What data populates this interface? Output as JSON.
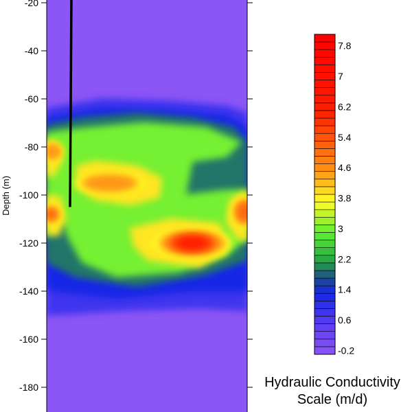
{
  "chart_data": {
    "type": "heatmap",
    "ylabel": "Depth (m)",
    "ylim": [
      -192,
      -18
    ],
    "y_ticks": [
      -20,
      -40,
      -60,
      -80,
      -100,
      -120,
      -140,
      -160,
      -180
    ],
    "y_tick_labels": [
      "-20",
      "-40",
      "-60",
      "-80",
      "-100",
      "-120",
      "-140",
      "-160",
      "-180"
    ],
    "background_value": -0.2,
    "colorbar": {
      "title_line1": "Hydraulic Conductivity",
      "title_line2": "Scale (m/d)",
      "min": -0.2,
      "max": 8.2,
      "step": 0.2,
      "labels": [
        "7.8",
        "7",
        "6.2",
        "5.4",
        "4.6",
        "3.8",
        "3",
        "2.2",
        "1.4",
        "0.6",
        "-0.2"
      ],
      "stops": [
        {
          "value": -0.2,
          "color": "#8c55f5"
        },
        {
          "value": 0.6,
          "color": "#5a3cf5"
        },
        {
          "value": 1.4,
          "color": "#1428e6"
        },
        {
          "value": 1.8,
          "color": "#1e4a8c"
        },
        {
          "value": 2.2,
          "color": "#23a046"
        },
        {
          "value": 3.0,
          "color": "#5ef032"
        },
        {
          "value": 3.4,
          "color": "#b4f028"
        },
        {
          "value": 3.8,
          "color": "#ffff28"
        },
        {
          "value": 4.6,
          "color": "#ff9614"
        },
        {
          "value": 5.4,
          "color": "#ff5a0a"
        },
        {
          "value": 6.2,
          "color": "#ff1e00"
        },
        {
          "value": 8.2,
          "color": "#ff0000"
        }
      ]
    },
    "borehole": {
      "y_top": -18,
      "y_bottom": -105
    },
    "hotspots": [
      {
        "name": "upper-band-left",
        "y": -82,
        "value": 4.8
      },
      {
        "name": "middle-band",
        "y": -95,
        "value": 5.0
      },
      {
        "name": "mid-left-edge",
        "y": -108,
        "value": 5.2
      },
      {
        "name": "lower-core",
        "y": -120,
        "value": 6.8
      },
      {
        "name": "right-edge",
        "y": -107,
        "value": 5.2
      }
    ]
  }
}
